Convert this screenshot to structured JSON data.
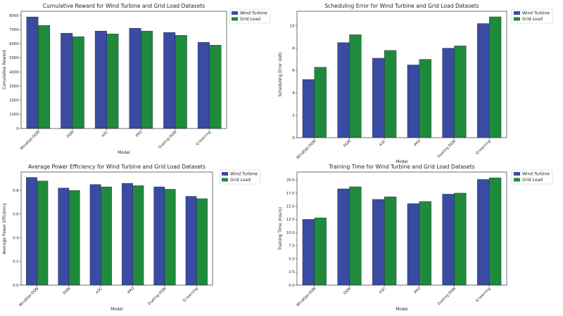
{
  "chart_data": [
    {
      "type": "bar",
      "title": "Cumulative Reward for Wind Turbine and Grid Load Datasets",
      "xlabel": "Model",
      "ylabel": "Cumulative Reward",
      "categories": [
        "WindOpt-DQN",
        "DQN",
        "A3C",
        "PPO",
        "Dueling DQN",
        "Q-learning"
      ],
      "series": [
        {
          "name": "Wind Turbine",
          "values": [
            7900,
            6750,
            6900,
            7100,
            6800,
            6100
          ]
        },
        {
          "name": "Grid Load",
          "values": [
            7300,
            6500,
            6700,
            6900,
            6600,
            5900
          ]
        }
      ],
      "ylim": [
        0,
        8300
      ],
      "yticks": [
        0,
        1000,
        2000,
        3000,
        4000,
        5000,
        6000,
        7000,
        8000
      ],
      "legend": "top-right",
      "colors": [
        "#3a4ba3",
        "#1f8a3c"
      ]
    },
    {
      "type": "bar",
      "title": "Scheduling Error for Wind Turbine and Grid Load Datasets",
      "xlabel": "Model",
      "ylabel": "Scheduling Error (kW)",
      "categories": [
        "WindOpt-DQN",
        "DQN",
        "A3C",
        "PPO",
        "Dueling DQN",
        "Q-learning"
      ],
      "series": [
        {
          "name": "Wind Turbine",
          "values": [
            5.2,
            8.5,
            7.1,
            6.5,
            8.0,
            10.2
          ]
        },
        {
          "name": "Grid Load",
          "values": [
            6.3,
            9.2,
            7.8,
            7.0,
            8.2,
            10.8
          ]
        }
      ],
      "ylim": [
        0,
        11.3
      ],
      "yticks": [
        0,
        2,
        4,
        6,
        8,
        10
      ],
      "legend": "top-right",
      "colors": [
        "#3a4ba3",
        "#1f8a3c"
      ]
    },
    {
      "type": "bar",
      "title": "Average Power Efficiency for Wind Turbine and Grid Load Datasets",
      "xlabel": "Model",
      "ylabel": "Average Power Efficiency",
      "categories": [
        "WindOpt-DQN",
        "DQN",
        "A3C",
        "PPO",
        "Dueling DQN",
        "Q-learning"
      ],
      "series": [
        {
          "name": "Wind Turbine",
          "values": [
            0.91,
            0.82,
            0.85,
            0.86,
            0.83,
            0.75
          ]
        },
        {
          "name": "Grid Load",
          "values": [
            0.88,
            0.8,
            0.83,
            0.84,
            0.81,
            0.73
          ]
        }
      ],
      "ylim": [
        0,
        0.955
      ],
      "yticks": [
        0.0,
        0.2,
        0.4,
        0.6,
        0.8
      ],
      "legend": "top-right",
      "colors": [
        "#3a4ba3",
        "#1f8a3c"
      ]
    },
    {
      "type": "bar",
      "title": "Training Time for Wind Turbine and Grid Load Datasets",
      "xlabel": "Model",
      "ylabel": "Training Time (hours)",
      "categories": [
        "WindOpt-DQN",
        "DQN",
        "A3C",
        "PPO",
        "Dueling DQN",
        "Q-learning"
      ],
      "series": [
        {
          "name": "Wind Turbine",
          "values": [
            12.5,
            18.3,
            16.3,
            15.5,
            17.3,
            20.1
          ]
        },
        {
          "name": "Grid Load",
          "values": [
            12.8,
            18.7,
            16.8,
            15.9,
            17.5,
            20.4
          ]
        }
      ],
      "ylim": [
        0,
        21.5
      ],
      "yticks": [
        0.0,
        2.5,
        5.0,
        7.5,
        10.0,
        12.5,
        15.0,
        17.5,
        20.0
      ],
      "legend": "top-right",
      "colors": [
        "#3a4ba3",
        "#1f8a3c"
      ]
    }
  ]
}
